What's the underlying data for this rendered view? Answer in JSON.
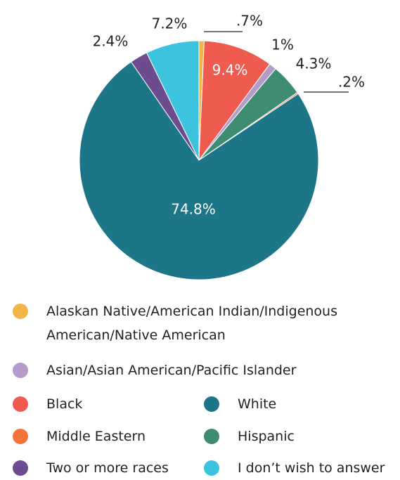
{
  "chart_data": {
    "type": "pie",
    "categories": [
      "Alaskan Native/American Indian/Indigenous American/Native American",
      "Black",
      "Asian/Asian American/Pacific Islander",
      "Hispanic",
      "Middle Eastern",
      "White",
      "Two or more races",
      "I don’t wish to answer"
    ],
    "values": [
      0.7,
      9.4,
      1,
      4.3,
      0.2,
      74.8,
      2.4,
      7.2
    ],
    "value_labels": [
      ".7%",
      "9.4%",
      "1%",
      "4.3%",
      ".2%",
      "74.8%",
      "2.4%",
      "7.2%"
    ],
    "colors": [
      "#f2b54a",
      "#f05b4f",
      "#b39cc9",
      "#3e8d73",
      "#f2743a",
      "#1c7688",
      "#6c4c8f",
      "#3cc3de"
    ],
    "legend": true
  }
}
